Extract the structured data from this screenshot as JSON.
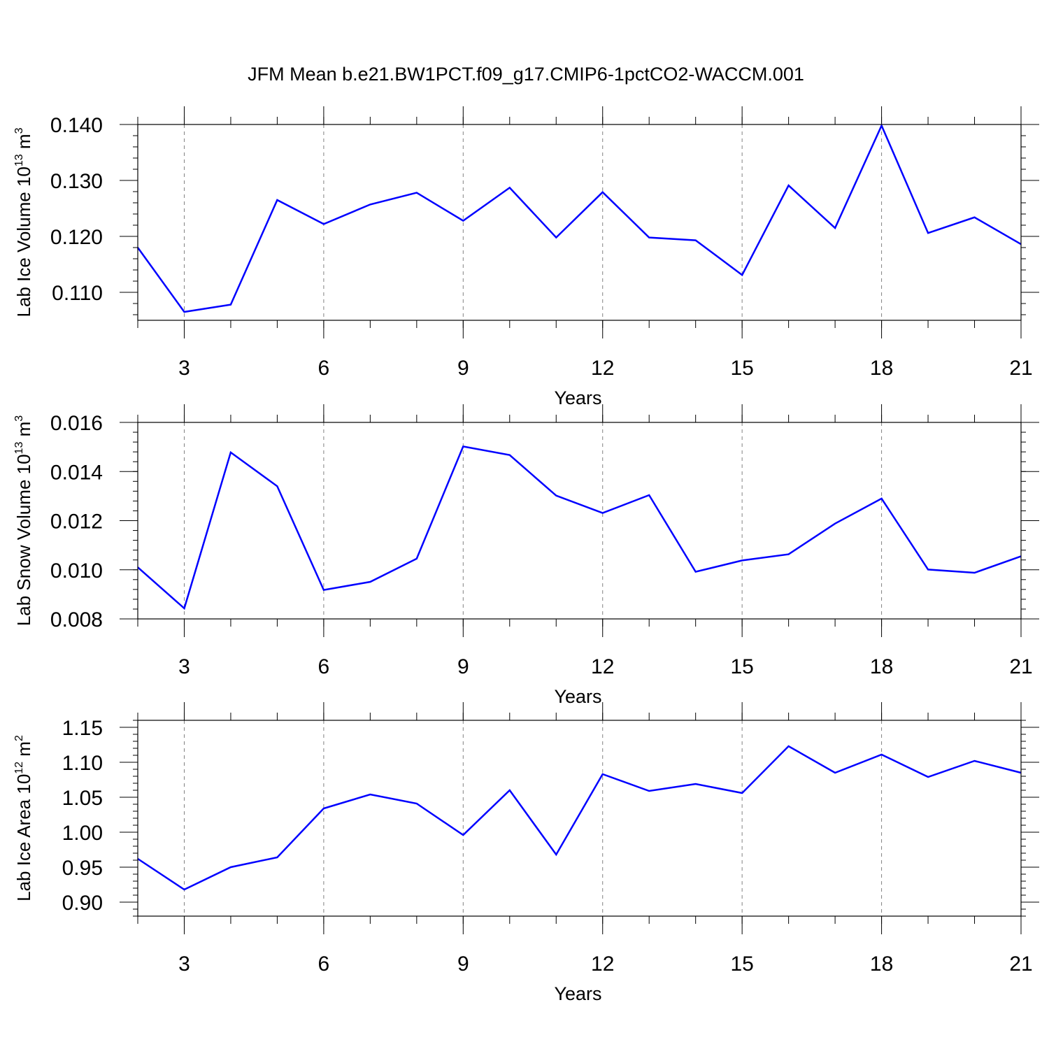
{
  "title": "JFM Mean b.e21.BW1PCT.f09_g17.CMIP6-1pctCO2-WACCM.001",
  "colors": {
    "line": "#0000ff",
    "axis": "#000000",
    "grid": "#808080"
  },
  "chart_data": [
    {
      "type": "line",
      "ylabel": {
        "main": "Lab Ice Volume 10",
        "exp": "13",
        "unit": " m",
        "unit_exp": "3"
      },
      "xlabel": "Years",
      "xlim": [
        2,
        21
      ],
      "ylim": [
        0.105,
        0.14
      ],
      "xticks": [
        3,
        6,
        9,
        12,
        15,
        18,
        21
      ],
      "xtick_labels": [
        "3",
        "6",
        "9",
        "12",
        "15",
        "18",
        "21"
      ],
      "yticks": [
        0.11,
        0.12,
        0.13,
        0.14
      ],
      "ytick_labels": [
        "0.110",
        "0.120",
        "0.130",
        "0.140"
      ],
      "yminor_step": 0.002,
      "grid": "vertical dashed at major x ticks",
      "x": [
        2,
        3,
        4,
        5,
        6,
        7,
        8,
        9,
        10,
        11,
        12,
        13,
        14,
        15,
        16,
        17,
        18,
        19,
        20,
        21
      ],
      "values": [
        0.118,
        0.1065,
        0.1078,
        0.1265,
        0.1222,
        0.1257,
        0.1278,
        0.1228,
        0.1287,
        0.1198,
        0.1279,
        0.1198,
        0.1193,
        0.1131,
        0.1291,
        0.1215,
        0.1398,
        0.1206,
        0.1234,
        0.1186
      ]
    },
    {
      "type": "line",
      "ylabel": {
        "main": "Lab Snow Volume 10",
        "exp": "13",
        "unit": " m",
        "unit_exp": "3"
      },
      "xlabel": "Years",
      "xlim": [
        2,
        21
      ],
      "ylim": [
        0.008,
        0.016
      ],
      "xticks": [
        3,
        6,
        9,
        12,
        15,
        18,
        21
      ],
      "xtick_labels": [
        "3",
        "6",
        "9",
        "12",
        "15",
        "18",
        "21"
      ],
      "yticks": [
        0.008,
        0.01,
        0.012,
        0.014,
        0.016
      ],
      "ytick_labels": [
        "0.008",
        "0.010",
        "0.012",
        "0.014",
        "0.016"
      ],
      "yminor_step": 0.0004,
      "grid": "vertical dashed at major x ticks",
      "x": [
        2,
        3,
        4,
        5,
        6,
        7,
        8,
        9,
        10,
        11,
        12,
        13,
        14,
        15,
        16,
        17,
        18,
        19,
        20,
        21
      ],
      "values": [
        0.0101,
        0.00843,
        0.01478,
        0.0134,
        0.00918,
        0.00951,
        0.01045,
        0.01502,
        0.01467,
        0.01302,
        0.01231,
        0.01304,
        0.00992,
        0.01038,
        0.01063,
        0.01188,
        0.0129,
        0.01001,
        0.00988,
        0.01055
      ]
    },
    {
      "type": "line",
      "ylabel": {
        "main": "Lab Ice Area 10",
        "exp": "12",
        "unit": " m",
        "unit_exp": "2"
      },
      "xlabel": "Years",
      "xlim": [
        2,
        21
      ],
      "ylim": [
        0.88,
        1.16
      ],
      "xticks": [
        3,
        6,
        9,
        12,
        15,
        18,
        21
      ],
      "xtick_labels": [
        "3",
        "6",
        "9",
        "12",
        "15",
        "18",
        "21"
      ],
      "yticks": [
        0.9,
        0.95,
        1.0,
        1.05,
        1.1,
        1.15
      ],
      "ytick_labels": [
        "0.90",
        "0.95",
        "1.00",
        "1.05",
        "1.10",
        "1.15"
      ],
      "yminor_step": 0.01,
      "grid": "vertical dashed at major x ticks",
      "x": [
        2,
        3,
        4,
        5,
        6,
        7,
        8,
        9,
        10,
        11,
        12,
        13,
        14,
        15,
        16,
        17,
        18,
        19,
        20,
        21
      ],
      "values": [
        0.962,
        0.918,
        0.95,
        0.964,
        1.034,
        1.054,
        1.041,
        0.996,
        1.06,
        0.968,
        1.083,
        1.059,
        1.069,
        1.056,
        1.123,
        1.085,
        1.111,
        1.079,
        1.102,
        1.085
      ]
    }
  ]
}
